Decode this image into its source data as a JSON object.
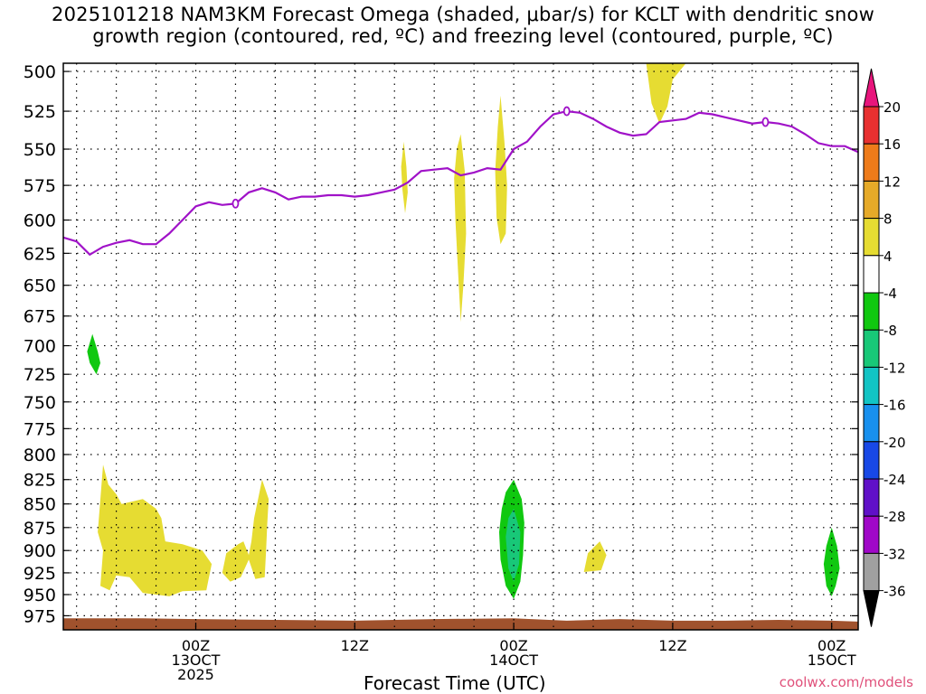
{
  "title_line1": "2025101218 NAM3KM Forecast Omega (shaded, μbar/s) for KCLT with dendritic snow",
  "title_line2": "growth region (contoured, red, ºC) and freezing level (contoured, purple, ºC)",
  "x_axis_title": "Forecast Time (UTC)",
  "credit": "coolwx.com/models",
  "chart_data": {
    "type": "heatmap",
    "xlabel": "Forecast Time (UTC)",
    "ylabel": "",
    "x_unit": "hours from 2025-10-13 00Z",
    "xlim": [
      -10,
      50
    ],
    "ylim_hpa": [
      495,
      992
    ],
    "y_ticks": [
      500,
      525,
      550,
      575,
      600,
      625,
      650,
      675,
      700,
      725,
      750,
      775,
      800,
      825,
      850,
      875,
      900,
      925,
      950,
      975
    ],
    "x_ticks": [
      {
        "x": 0,
        "label": [
          "00Z",
          "13OCT",
          "2025"
        ]
      },
      {
        "x": 12,
        "label": [
          "12Z"
        ]
      },
      {
        "x": 24,
        "label": [
          "00Z",
          "14OCT"
        ]
      },
      {
        "x": 36,
        "label": [
          "12Z"
        ]
      },
      {
        "x": 48,
        "label": [
          "00Z",
          "15OCT"
        ]
      }
    ],
    "grid": true,
    "colorbar": {
      "labels": [
        "20",
        "16",
        "12",
        "8",
        "4",
        "-4",
        "-8",
        "-12",
        "-16",
        "-20",
        "-24",
        "-28",
        "-32",
        "-36"
      ],
      "colors": [
        "#e8157c",
        "#e83030",
        "#ee7b1a",
        "#e6aa28",
        "#e6dc32",
        "#ffffff",
        "#10c810",
        "#18c878",
        "#12c4c4",
        "#1890ee",
        "#1848e6",
        "#6010c8",
        "#a008c8",
        "#a0a0a0",
        "#000000"
      ]
    },
    "freezing_level": {
      "color": "#a012c8",
      "label": "0",
      "label_x": [
        3,
        28,
        43
      ],
      "points": [
        [
          -10,
          613
        ],
        [
          -9,
          616
        ],
        [
          -8,
          626
        ],
        [
          -7,
          620
        ],
        [
          -6,
          617
        ],
        [
          -5,
          615
        ],
        [
          -4,
          618
        ],
        [
          -3,
          618
        ],
        [
          -2,
          610
        ],
        [
          -1,
          600
        ],
        [
          0,
          590
        ],
        [
          1,
          587
        ],
        [
          2,
          589
        ],
        [
          3,
          588
        ],
        [
          4,
          580
        ],
        [
          5,
          577
        ],
        [
          6,
          580
        ],
        [
          7,
          585
        ],
        [
          8,
          583
        ],
        [
          9,
          583
        ],
        [
          10,
          582
        ],
        [
          11,
          582
        ],
        [
          12,
          583
        ],
        [
          13,
          582
        ],
        [
          14,
          580
        ],
        [
          15,
          578
        ],
        [
          16,
          573
        ],
        [
          17,
          565
        ],
        [
          18,
          564
        ],
        [
          19,
          563
        ],
        [
          20,
          568
        ],
        [
          21,
          566
        ],
        [
          22,
          563
        ],
        [
          23,
          564
        ],
        [
          24,
          550
        ],
        [
          25,
          545
        ],
        [
          26,
          535
        ],
        [
          27,
          527
        ],
        [
          28,
          525
        ],
        [
          29,
          526
        ],
        [
          30,
          530
        ],
        [
          31,
          535
        ],
        [
          32,
          539
        ],
        [
          33,
          541
        ],
        [
          34,
          540
        ],
        [
          35,
          532
        ],
        [
          36,
          531
        ],
        [
          37,
          530
        ],
        [
          38,
          526
        ],
        [
          39,
          527
        ],
        [
          40,
          529
        ],
        [
          41,
          531
        ],
        [
          42,
          533
        ],
        [
          43,
          532
        ],
        [
          44,
          533
        ],
        [
          45,
          535
        ],
        [
          46,
          540
        ],
        [
          47,
          546
        ],
        [
          48,
          548
        ],
        [
          49,
          548
        ],
        [
          50,
          552
        ]
      ]
    },
    "omega_regions": [
      {
        "value": 6,
        "color": "#e6dc32",
        "polygon": [
          [
            34,
            495
          ],
          [
            34.4,
            520
          ],
          [
            35,
            533
          ],
          [
            35.6,
            522
          ],
          [
            36,
            505
          ],
          [
            37,
            495
          ]
        ]
      },
      {
        "value": 6,
        "color": "#e6dc32",
        "polygon": [
          [
            15.7,
            545
          ],
          [
            15.9,
            562
          ],
          [
            16,
            580
          ],
          [
            15.8,
            595
          ],
          [
            15.6,
            578
          ],
          [
            15.5,
            562
          ]
        ]
      },
      {
        "value": 6,
        "color": "#e6dc32",
        "polygon": [
          [
            20,
            540
          ],
          [
            20.3,
            565
          ],
          [
            20.4,
            610
          ],
          [
            20.2,
            650
          ],
          [
            20,
            680
          ],
          [
            19.8,
            640
          ],
          [
            19.6,
            600
          ],
          [
            19.5,
            570
          ],
          [
            19.7,
            550
          ]
        ]
      },
      {
        "value": 6,
        "color": "#e6dc32",
        "polygon": [
          [
            23,
            515
          ],
          [
            23.3,
            545
          ],
          [
            23.5,
            575
          ],
          [
            23.4,
            610
          ],
          [
            23,
            618
          ],
          [
            22.7,
            598
          ],
          [
            22.6,
            565
          ],
          [
            22.8,
            535
          ]
        ]
      },
      {
        "value": 6,
        "color": "#e6dc32",
        "polygon": [
          [
            -7,
            810
          ],
          [
            -6.6,
            830
          ],
          [
            -6,
            840
          ],
          [
            -5.6,
            850
          ],
          [
            -4,
            845
          ],
          [
            -3,
            855
          ],
          [
            -2.6,
            865
          ],
          [
            -2.3,
            890
          ],
          [
            -1,
            893
          ],
          [
            0.5,
            900
          ],
          [
            1.2,
            915
          ],
          [
            1,
            930
          ],
          [
            0.8,
            945
          ],
          [
            -1,
            946
          ],
          [
            -2,
            952
          ],
          [
            -4,
            948
          ],
          [
            -5,
            930
          ],
          [
            -6,
            928
          ],
          [
            -6.5,
            945
          ],
          [
            -7.2,
            940
          ],
          [
            -7,
            900
          ],
          [
            -7.4,
            880
          ],
          [
            -7.2,
            845
          ]
        ]
      },
      {
        "value": 6,
        "color": "#e6dc32",
        "polygon": [
          [
            5,
            825
          ],
          [
            5.5,
            845
          ],
          [
            5.4,
            870
          ],
          [
            5.3,
            903
          ],
          [
            5.2,
            930
          ],
          [
            4.5,
            932
          ],
          [
            4,
            910
          ],
          [
            3.4,
            930
          ],
          [
            2.6,
            935
          ],
          [
            2,
            925
          ],
          [
            2.3,
            903
          ],
          [
            3.2,
            893
          ],
          [
            3.6,
            890
          ],
          [
            4,
            905
          ],
          [
            4.2,
            890
          ],
          [
            4.4,
            865
          ],
          [
            4.7,
            845
          ]
        ]
      },
      {
        "value": 6,
        "color": "#e6dc32",
        "polygon": [
          [
            30.5,
            890
          ],
          [
            31,
            905
          ],
          [
            30.6,
            922
          ],
          [
            29.3,
            924
          ],
          [
            29.6,
            903
          ]
        ]
      },
      {
        "value": -6,
        "color": "#10c810",
        "polygon": [
          [
            -7.8,
            690
          ],
          [
            -7.4,
            705
          ],
          [
            -7.2,
            715
          ],
          [
            -7.5,
            725
          ],
          [
            -8,
            715
          ],
          [
            -8.2,
            705
          ]
        ]
      },
      {
        "value": -6,
        "color": "#10c810",
        "polygon": [
          [
            24,
            825
          ],
          [
            24.6,
            845
          ],
          [
            24.8,
            870
          ],
          [
            24.7,
            905
          ],
          [
            24.5,
            935
          ],
          [
            24,
            955
          ],
          [
            23.4,
            940
          ],
          [
            23,
            910
          ],
          [
            22.9,
            880
          ],
          [
            23.1,
            855
          ],
          [
            23.4,
            838
          ]
        ]
      },
      {
        "value": -10,
        "color": "#18c878",
        "polygon": [
          [
            24,
            855
          ],
          [
            24.5,
            880
          ],
          [
            24.4,
            915
          ],
          [
            24,
            935
          ],
          [
            23.6,
            920
          ],
          [
            23.4,
            885
          ],
          [
            23.6,
            865
          ]
        ]
      },
      {
        "value": -6,
        "color": "#10c810",
        "polygon": [
          [
            48,
            875
          ],
          [
            48.4,
            895
          ],
          [
            48.6,
            920
          ],
          [
            48.3,
            940
          ],
          [
            48,
            952
          ],
          [
            47.6,
            940
          ],
          [
            47.4,
            915
          ],
          [
            47.6,
            895
          ]
        ]
      }
    ],
    "terrain": {
      "color": "#a0522d",
      "top_hpa": [
        [
          -10,
          978
        ],
        [
          -4,
          978
        ],
        [
          0,
          979
        ],
        [
          6,
          980
        ],
        [
          12,
          981
        ],
        [
          18,
          979
        ],
        [
          24,
          978
        ],
        [
          28,
          981
        ],
        [
          32,
          979
        ],
        [
          36,
          981
        ],
        [
          40,
          981
        ],
        [
          44,
          980
        ],
        [
          48,
          981
        ],
        [
          50,
          982
        ]
      ]
    }
  }
}
